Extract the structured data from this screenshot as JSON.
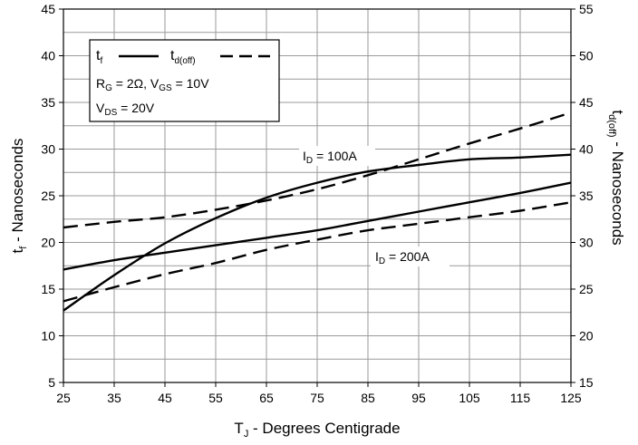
{
  "chart_data": {
    "type": "line",
    "x_label": {
      "main": "T",
      "sub": "J",
      "rest": " - Degrees Centigrade"
    },
    "y_label_left": {
      "main": "t",
      "sub": "f",
      "rest": " - Nanoseconds"
    },
    "y_label_right": {
      "main": "t",
      "sub": "d(off)",
      "rest": " - Nanoseconds"
    },
    "xlim": [
      25,
      125
    ],
    "ylim_left": [
      5,
      45
    ],
    "ylim_right": [
      15,
      55
    ],
    "x_ticks": [
      "25",
      "35",
      "45",
      "55",
      "65",
      "75",
      "85",
      "95",
      "105",
      "115",
      "125"
    ],
    "y_ticks_left": [
      "5",
      "10",
      "15",
      "20",
      "25",
      "30",
      "35",
      "40",
      "45"
    ],
    "y_ticks_right": [
      "15",
      "20",
      "25",
      "30",
      "35",
      "40",
      "45",
      "50",
      "55"
    ],
    "grid": true,
    "legend": {
      "position": "top-left",
      "tf": {
        "main": "t",
        "sub": "f"
      },
      "td": {
        "main": "t",
        "sub": "d(off)"
      },
      "cond1": {
        "a": "R",
        "a_sub": "G",
        "b": " = 2Ω,  V",
        "b_sub": "GS",
        "c": " = 10V"
      },
      "cond2": {
        "a": "V",
        "a_sub": "DS",
        "b": " = 20V"
      }
    },
    "annotations": [
      {
        "main": "I",
        "sub": "D",
        "rest": " = 100A"
      },
      {
        "main": "I",
        "sub": "D",
        "rest": " = 200A"
      }
    ],
    "series": [
      {
        "axis": "left",
        "style": "solid",
        "x": [
          25,
          35,
          45,
          55,
          65,
          75,
          85,
          95,
          105,
          115,
          125
        ],
        "values": [
          12.7,
          16.5,
          19.9,
          22.6,
          24.8,
          26.4,
          27.6,
          28.3,
          28.9,
          29.1,
          29.4
        ]
      },
      {
        "axis": "left",
        "style": "solid",
        "x": [
          25,
          35,
          45,
          55,
          65,
          75,
          85,
          95,
          105,
          115,
          125
        ],
        "values": [
          17.1,
          18.1,
          18.9,
          19.7,
          20.5,
          21.3,
          22.3,
          23.3,
          24.3,
          25.3,
          26.4
        ]
      },
      {
        "axis": "right",
        "style": "dashed",
        "x": [
          25,
          35,
          45,
          55,
          65,
          75,
          85,
          95,
          105,
          115,
          125
        ],
        "values": [
          31.6,
          32.2,
          32.7,
          33.5,
          34.5,
          35.7,
          37.2,
          38.9,
          40.6,
          42.2,
          43.9
        ]
      },
      {
        "axis": "right",
        "style": "dashed",
        "x": [
          25,
          35,
          45,
          55,
          65,
          75,
          85,
          95,
          105,
          115,
          125
        ],
        "values": [
          23.7,
          25.2,
          26.6,
          27.8,
          29.2,
          30.3,
          31.3,
          32.0,
          32.7,
          33.4,
          34.3
        ]
      }
    ]
  }
}
